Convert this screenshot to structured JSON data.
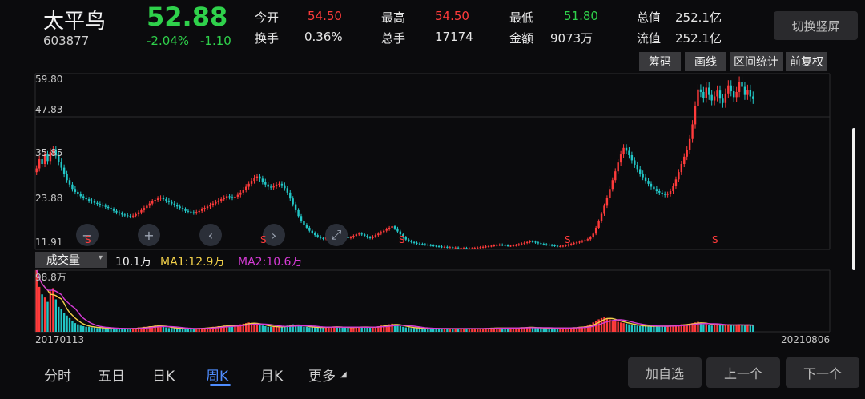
{
  "header": {
    "name": "太平鸟",
    "code": "603877",
    "price": "52.88",
    "change_pct": "-2.04%",
    "change_amt": "-1.10"
  },
  "stats": {
    "open_label": "今开",
    "open_value": "54.50",
    "high_label": "最高",
    "high_value": "54.50",
    "low_label": "最低",
    "low_value": "51.80",
    "total_cap_label": "总值",
    "total_cap_value": "252.1亿",
    "turnover_label": "换手",
    "turnover_value": "0.36%",
    "volume_label": "总手",
    "volume_value": "17174",
    "amount_label": "金额",
    "amount_value": "9073万",
    "float_cap_label": "流值",
    "float_cap_value": "252.1亿"
  },
  "toolbar": {
    "switch_label": "切换竖屏",
    "chip_label": "筹码",
    "draw_label": "画线",
    "range_label": "区间统计",
    "adjust_label": "前复权"
  },
  "price_axis": [
    "59.80",
    "47.83",
    "35.85",
    "23.88",
    "11.91"
  ],
  "markers": {
    "signal_label": "S"
  },
  "volume": {
    "selector_label": "成交量",
    "current": "10.1万",
    "ma1": "MA1:12.9万",
    "ma2": "MA2:10.6万",
    "axis_top": "98.8万"
  },
  "dates": {
    "start": "20170113",
    "end": "20210806"
  },
  "tabs": [
    {
      "label": "分时"
    },
    {
      "label": "五日"
    },
    {
      "label": "日K"
    },
    {
      "label": "周K"
    },
    {
      "label": "月K"
    },
    {
      "label": "更多"
    }
  ],
  "actions": {
    "add_watch": "加自选",
    "prev": "上一个",
    "next": "下一个"
  },
  "colors": {
    "up": "#ff3b3b",
    "down": "#22c7c7",
    "ma1": "#f3d14a",
    "ma2": "#d63bd6"
  },
  "chart_data": {
    "type": "candlestick",
    "ylim": [
      11.91,
      59.8
    ],
    "x_start": "20170113",
    "x_end": "20210806",
    "closes": [
      34.0,
      36.5,
      35.2,
      37.8,
      36.0,
      38.5,
      39.2,
      37.5,
      35.8,
      34.2,
      32.5,
      30.8,
      29.6,
      28.4,
      27.6,
      27.0,
      26.4,
      26.0,
      25.6,
      25.2,
      25.0,
      24.6,
      24.3,
      24.0,
      23.8,
      23.5,
      23.2,
      22.8,
      22.4,
      22.0,
      21.7,
      21.4,
      21.2,
      21.0,
      20.9,
      21.1,
      21.5,
      22.0,
      22.6,
      23.2,
      23.8,
      24.4,
      25.0,
      25.4,
      25.8,
      26.0,
      25.6,
      25.2,
      24.8,
      24.4,
      24.0,
      23.6,
      23.2,
      22.8,
      22.4,
      22.2,
      22.0,
      21.9,
      22.1,
      22.4,
      22.8,
      23.2,
      23.6,
      24.0,
      24.4,
      24.8,
      25.2,
      25.6,
      26.0,
      26.4,
      26.2,
      26.0,
      26.3,
      26.8,
      27.4,
      28.2,
      29.0,
      29.8,
      30.6,
      31.4,
      31.8,
      31.2,
      30.4,
      29.6,
      29.0,
      28.8,
      29.2,
      29.6,
      29.8,
      29.4,
      28.6,
      27.4,
      25.8,
      24.2,
      22.6,
      21.0,
      19.6,
      18.6,
      17.8,
      17.0,
      16.4,
      15.8,
      15.4,
      15.0,
      14.8,
      15.2,
      15.6,
      16.0,
      16.4,
      16.2,
      15.8,
      15.4,
      15.2,
      15.0,
      15.2,
      15.6,
      16.0,
      16.2,
      16.0,
      15.6,
      15.2,
      15.0,
      15.4,
      15.8,
      16.2,
      16.6,
      17.0,
      17.4,
      17.8,
      18.2,
      17.6,
      16.8,
      16.0,
      15.2,
      14.6,
      14.2,
      13.9,
      13.7,
      13.5,
      13.4,
      13.3,
      13.2,
      13.1,
      13.0,
      12.9,
      12.8,
      12.7,
      12.6,
      12.6,
      12.5,
      12.5,
      12.4,
      12.4,
      12.3,
      12.3,
      12.3,
      12.2,
      12.2,
      12.2,
      12.3,
      12.4,
      12.5,
      12.6,
      12.7,
      12.8,
      12.9,
      13.0,
      13.1,
      13.2,
      13.1,
      13.0,
      12.9,
      12.9,
      13.0,
      13.1,
      13.3,
      13.5,
      13.7,
      13.9,
      14.1,
      14.0,
      13.8,
      13.6,
      13.4,
      13.3,
      13.2,
      13.1,
      13.0,
      12.9,
      12.8,
      12.8,
      12.9,
      13.0,
      13.2,
      13.4,
      13.6,
      13.8,
      14.0,
      14.2,
      14.4,
      14.7,
      15.2,
      16.2,
      17.8,
      19.6,
      21.6,
      23.8,
      26.0,
      28.4,
      30.8,
      33.2,
      35.6,
      37.8,
      39.6,
      38.8,
      37.6,
      36.2,
      35.0,
      33.8,
      32.6,
      31.6,
      30.6,
      29.8,
      29.0,
      28.4,
      27.8,
      27.4,
      27.0,
      26.8,
      27.0,
      27.8,
      29.2,
      31.0,
      33.0,
      35.2,
      37.2,
      39.0,
      42.0,
      46.0,
      51.0,
      55.5,
      54.8,
      53.2,
      56.0,
      54.0,
      52.5,
      53.6,
      55.2,
      53.0,
      51.8,
      54.4,
      56.6,
      55.0,
      53.4,
      54.8,
      57.6,
      56.2,
      54.0,
      55.4,
      53.6,
      52.88
    ],
    "volume_wan": [
      98.8,
      72,
      60,
      55,
      48,
      65,
      70,
      52,
      40,
      36,
      30,
      26,
      22,
      18,
      14,
      12,
      10,
      9,
      8,
      8,
      7,
      7,
      6,
      6,
      6,
      6,
      6,
      5,
      5,
      5,
      5,
      5,
      5,
      5,
      5,
      6,
      6,
      7,
      7,
      8,
      8,
      9,
      9,
      10,
      10,
      9,
      8,
      7,
      6,
      6,
      6,
      5,
      5,
      5,
      5,
      5,
      5,
      5,
      5,
      6,
      6,
      6,
      7,
      7,
      8,
      8,
      9,
      9,
      10,
      10,
      9,
      9,
      10,
      11,
      12,
      13,
      14,
      15,
      14,
      13,
      12,
      11,
      10,
      9,
      8,
      8,
      8,
      8,
      8,
      8,
      9,
      10,
      11,
      12,
      11,
      10,
      9,
      8,
      8,
      7,
      7,
      7,
      7,
      7,
      7,
      8,
      8,
      8,
      8,
      8,
      7,
      7,
      7,
      7,
      7,
      7,
      8,
      8,
      8,
      7,
      7,
      7,
      8,
      8,
      9,
      10,
      10,
      11,
      12,
      13,
      12,
      10,
      9,
      8,
      7,
      7,
      6,
      6,
      6,
      6,
      6,
      5,
      5,
      5,
      5,
      5,
      5,
      5,
      5,
      5,
      5,
      5,
      5,
      5,
      5,
      5,
      5,
      5,
      5,
      5,
      5,
      5,
      5,
      6,
      6,
      6,
      6,
      6,
      6,
      6,
      6,
      6,
      6,
      6,
      6,
      7,
      7,
      7,
      7,
      7,
      7,
      6,
      6,
      6,
      6,
      6,
      6,
      6,
      6,
      6,
      6,
      6,
      6,
      6,
      7,
      7,
      7,
      8,
      8,
      9,
      10,
      12,
      15,
      18,
      20,
      22,
      24,
      22,
      20,
      18,
      17,
      16,
      15,
      14,
      13,
      12,
      11,
      10,
      10,
      9,
      9,
      9,
      9,
      9,
      9,
      9,
      9,
      9,
      9,
      9,
      10,
      10,
      11,
      11,
      12,
      12,
      12,
      13,
      14,
      15,
      16,
      14,
      12,
      12,
      11,
      10,
      11,
      12,
      11,
      10,
      11,
      12,
      11,
      10,
      11,
      12,
      11,
      10,
      11,
      10,
      10.1
    ]
  }
}
